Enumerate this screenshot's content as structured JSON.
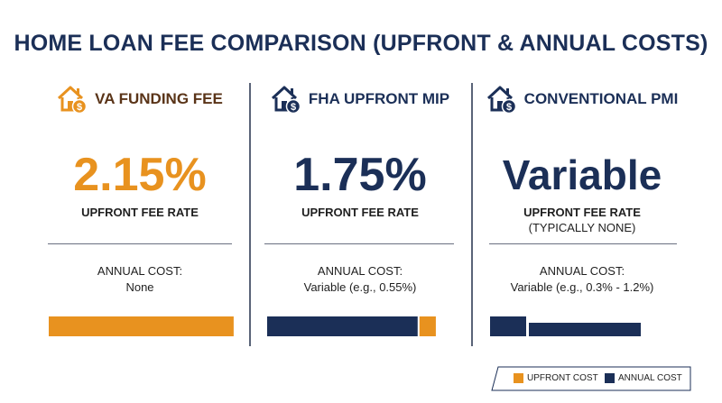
{
  "title": "HOME LOAN FEE COMPARISON (UPFRONT & ANNUAL COSTS)",
  "colors": {
    "upfront": "#e8921f",
    "annual": "#1b2f57",
    "text_dark": "#1b2f57",
    "divider": "#5a6478"
  },
  "columns": [
    {
      "heading": "VA FUNDING FEE",
      "icon": "house-dollar-icon",
      "big_value": "2.15%",
      "rate_label": "UPFRONT FEE RATE",
      "rate_sub": "",
      "annual_label": "ANNUAL COST:",
      "annual_value": "None"
    },
    {
      "heading": "FHA UPFRONT MIP",
      "icon": "house-dollar-icon",
      "big_value": "1.75%",
      "rate_label": "UPFRONT FEE RATE",
      "rate_sub": "",
      "annual_label": "ANNUAL COST:",
      "annual_value": "Variable (e.g., 0.55%)"
    },
    {
      "heading": "CONVENTIONAL PMI",
      "icon": "house-dollar-icon",
      "big_value": "Variable",
      "rate_label": "UPFRONT FEE RATE",
      "rate_sub": "(TYPICALLY NONE)",
      "annual_label": "ANNUAL COST:",
      "annual_value": "Variable (e.g., 0.3% - 1.2%)"
    }
  ],
  "legend": {
    "upfront": "UPFRONT COST",
    "annual": "ANNUAL COST"
  },
  "chart_data": {
    "type": "bar",
    "categories": [
      "VA FUNDING FEE",
      "FHA UPFRONT MIP",
      "CONVENTIONAL PMI"
    ],
    "series": [
      {
        "name": "UPFRONT COST",
        "values": [
          2.15,
          1.75,
          0
        ]
      },
      {
        "name": "ANNUAL COST",
        "values": [
          0,
          0.55,
          1.2
        ]
      }
    ],
    "stacked": "horizontal",
    "title": "HOME LOAN FEE COMPARISON (UPFRONT & ANNUAL COSTS)",
    "legend_position": "bottom-right"
  }
}
